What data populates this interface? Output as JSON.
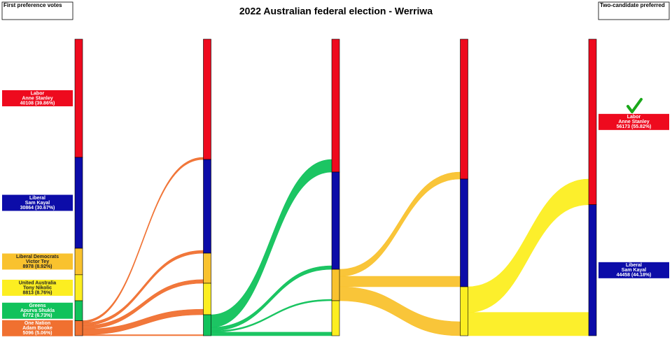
{
  "chart_data": {
    "type": "sankey",
    "title": "2022 Australian federal election - Werriwa",
    "left_label": "First preference votes",
    "right_label": "Two-candidate preferred",
    "candidates": [
      {
        "party": "Labor",
        "name": "Anne Stanley",
        "color": "#ee0a1e"
      },
      {
        "party": "Liberal",
        "name": "Sam Kayal",
        "color": "#0c0ca8"
      },
      {
        "party": "Liberal Democrats",
        "name": "Victor Tey",
        "color": "#f9c22e"
      },
      {
        "party": "United Australia",
        "name": "Tony Nikolic",
        "color": "#fcee21"
      },
      {
        "party": "Greens",
        "name": "Apurva Shukla",
        "color": "#10c25b"
      },
      {
        "party": "One Nation",
        "name": "Adam Booke",
        "color": "#f07030"
      }
    ],
    "rounds": [
      {
        "values": [
          40108,
          30864,
          8978,
          8813,
          6772,
          5096
        ],
        "value_labels": [
          "40108 (39.86%)",
          "30864 (30.67%)",
          "8978 (8.92%)",
          "8813 (8.76%)",
          "6772 (6.73%)",
          "5096 (5.06%)"
        ]
      },
      {
        "values": [
          40830,
          31800,
          10200,
          10680,
          7121,
          null
        ]
      },
      {
        "values": [
          45100,
          33000,
          10661,
          11870,
          null,
          null
        ]
      },
      {
        "values": [
          47470,
          36550,
          null,
          16611,
          null,
          null
        ]
      },
      {
        "values": [
          56173,
          44458,
          null,
          null,
          null,
          null
        ],
        "value_labels": [
          "56173 (55.82%)",
          "44458 (44.18%)",
          null,
          null,
          null,
          null
        ]
      }
    ]
  }
}
